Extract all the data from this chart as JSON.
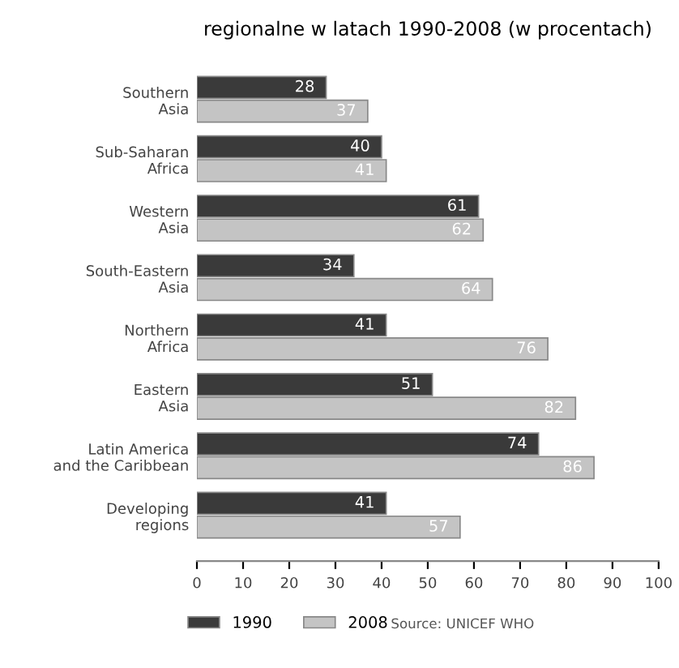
{
  "chart_data": {
    "type": "bar",
    "orientation": "horizontal",
    "title": "regionalne w latach 1990-2008 (w procentach)",
    "categories": [
      "Southern\nAsia",
      "Sub-Saharan\nAfrica",
      "Western\nAsia",
      "South-Eastern\nAsia",
      "Northern\nAfrica",
      "Eastern\nAsia",
      "Latin America\nand the Caribbean",
      "Developing\nregions"
    ],
    "series": [
      {
        "name": "1990",
        "color": "#3a3a3a",
        "values": [
          28,
          40,
          61,
          34,
          41,
          51,
          74,
          41
        ]
      },
      {
        "name": "2008",
        "color": "#c4c4c4",
        "values": [
          37,
          41,
          62,
          64,
          76,
          82,
          86,
          57
        ]
      }
    ],
    "xlim": [
      0,
      100
    ],
    "xticks": [
      0,
      10,
      20,
      30,
      40,
      50,
      60,
      70,
      80,
      90,
      100
    ],
    "data_labels": true,
    "grid": false,
    "legend": "bottom",
    "annotations": [
      "Source: UNICEF WHO"
    ]
  }
}
